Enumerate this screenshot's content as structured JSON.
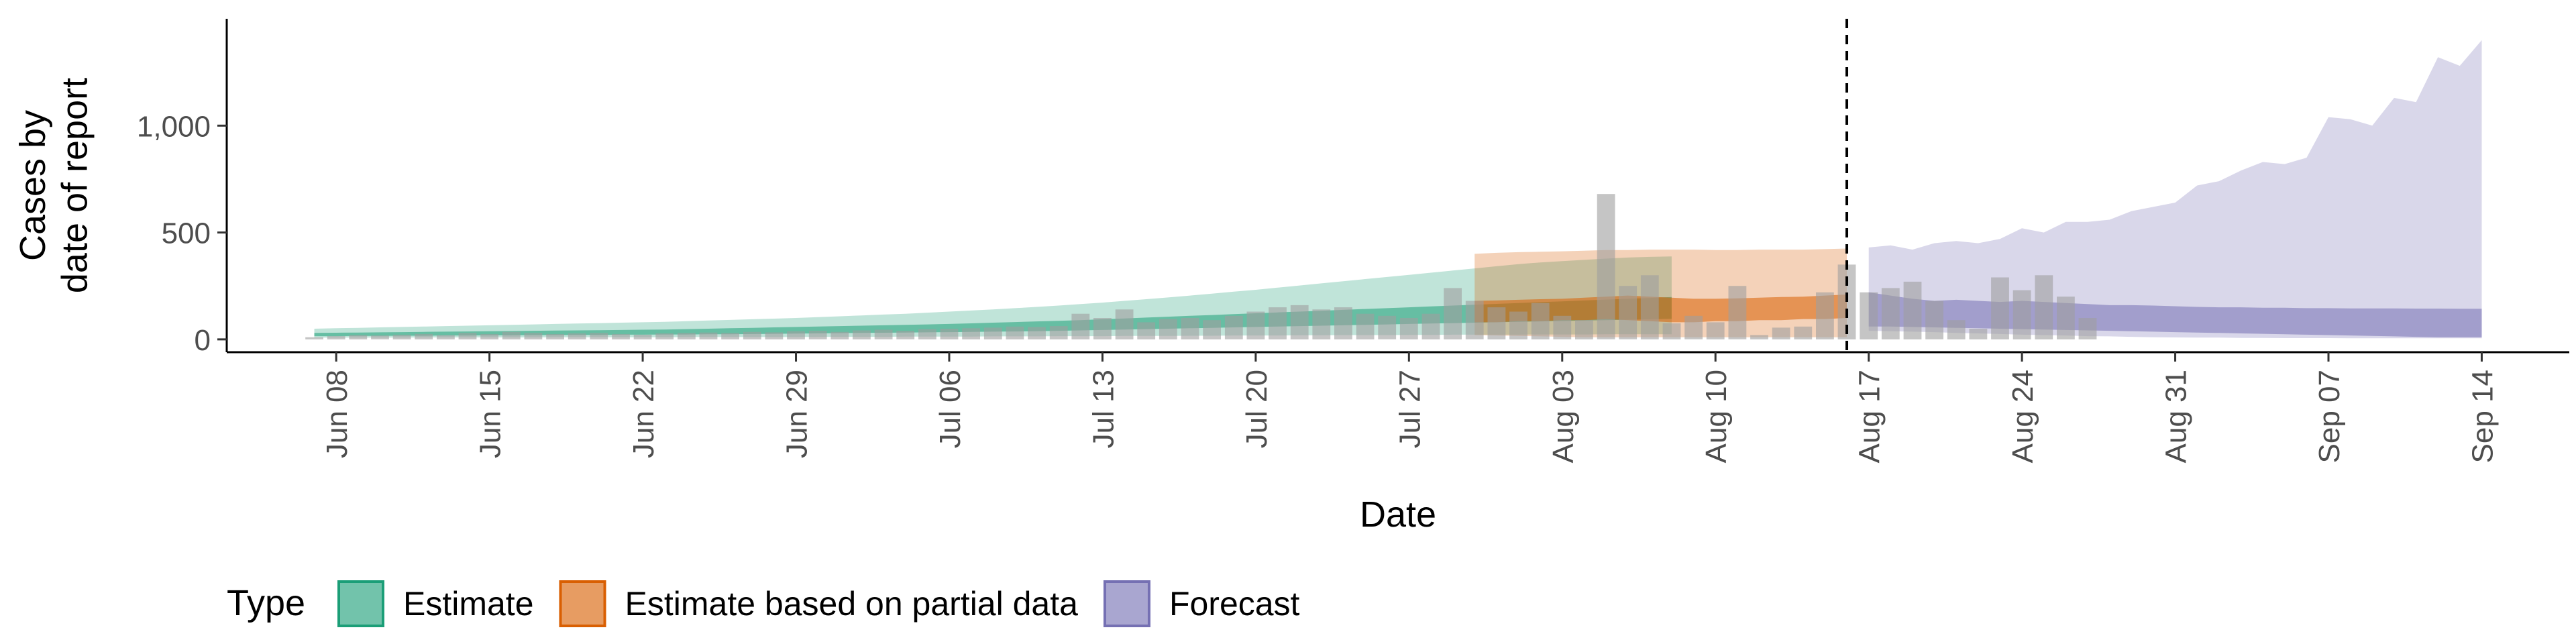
{
  "chart_data": {
    "type": "area",
    "ylabel_lines": [
      "Cases by",
      "date of report"
    ],
    "xlabel": "Date",
    "x_domain": [
      "2020-06-03",
      "2020-09-18"
    ],
    "ylim": [
      -60,
      1500
    ],
    "y_ticks": [
      0,
      500,
      1000
    ],
    "y_tick_labels": [
      "0",
      "500",
      "1,000"
    ],
    "x_ticks": [
      "2020-06-08",
      "2020-06-15",
      "2020-06-22",
      "2020-06-29",
      "2020-07-06",
      "2020-07-13",
      "2020-07-20",
      "2020-07-27",
      "2020-08-03",
      "2020-08-10",
      "2020-08-17",
      "2020-08-24",
      "2020-08-31",
      "2020-09-07",
      "2020-09-14"
    ],
    "x_tick_labels": [
      "Jun 08",
      "Jun 15",
      "Jun 22",
      "Jun 29",
      "Jul 06",
      "Jul 13",
      "Jul 20",
      "Jul 27",
      "Aug 03",
      "Aug 10",
      "Aug 17",
      "Aug 24",
      "Aug 31",
      "Sep 07",
      "Sep 14"
    ],
    "forecast_date": "2020-08-16",
    "legend": {
      "title": "Type",
      "placement": "bottom-left",
      "entries": [
        {
          "label": "Estimate",
          "fill": "#1b9e77",
          "stroke": "#1b9e77"
        },
        {
          "label": "Estimate based on partial data",
          "fill": "#d95f02",
          "stroke": "#d95f02"
        },
        {
          "label": "Forecast",
          "fill": "#7570b3",
          "stroke": "#7570b3"
        }
      ]
    },
    "colors": {
      "estimate": "#1b9e77",
      "partial": "#d95f02",
      "forecast": "#7570b3",
      "bars": "#9e9e9e"
    },
    "reported_cases": {
      "start_date": "2020-06-07",
      "values": [
        10,
        15,
        20,
        18,
        22,
        25,
        20,
        30,
        25,
        35,
        30,
        25,
        28,
        30,
        25,
        22,
        28,
        30,
        32,
        30,
        35,
        33,
        38,
        40,
        35,
        42,
        45,
        40,
        48,
        50,
        52,
        55,
        60,
        58,
        62,
        120,
        100,
        140,
        80,
        95,
        100,
        90,
        110,
        130,
        150,
        160,
        140,
        150,
        120,
        110,
        100,
        120,
        240,
        180,
        150,
        130,
        170,
        110,
        90,
        680,
        250,
        300,
        75,
        110,
        80,
        250,
        20,
        55,
        60,
        220,
        350,
        220,
        240,
        270,
        180,
        90,
        50,
        290,
        230,
        300,
        200,
        100
      ]
    },
    "series": [
      {
        "name": "Estimate",
        "start_date": "2020-06-07",
        "outer_low": [
          8,
          8,
          8,
          8,
          8,
          9,
          9,
          9,
          9,
          9,
          9,
          10,
          10,
          10,
          10,
          10,
          10,
          11,
          11,
          11,
          11,
          11,
          11,
          12,
          12,
          12,
          12,
          13,
          13,
          13,
          13,
          14,
          14,
          14,
          15,
          15,
          15,
          16,
          16,
          16,
          17,
          17,
          18,
          18,
          18,
          19,
          19,
          20,
          20,
          20,
          21,
          21,
          22,
          22,
          22,
          22,
          23,
          23,
          23,
          24,
          24,
          24,
          24
        ],
        "outer_high": [
          50,
          52,
          54,
          56,
          58,
          60,
          62,
          64,
          66,
          68,
          70,
          72,
          74,
          76,
          78,
          80,
          82,
          85,
          88,
          91,
          94,
          97,
          100,
          104,
          108,
          112,
          116,
          120,
          125,
          130,
          135,
          140,
          146,
          152,
          158,
          165,
          172,
          180,
          188,
          196,
          205,
          214,
          223,
          232,
          242,
          252,
          262,
          272,
          282,
          292,
          302,
          312,
          322,
          332,
          342,
          352,
          360,
          366,
          372,
          378,
          383,
          386,
          388
        ],
        "inner_low": [
          15,
          15,
          16,
          16,
          17,
          17,
          18,
          18,
          19,
          19,
          20,
          20,
          21,
          21,
          22,
          22,
          23,
          23,
          24,
          24,
          25,
          26,
          27,
          28,
          29,
          30,
          31,
          32,
          33,
          34,
          35,
          36,
          37,
          38,
          40,
          42,
          44,
          46,
          48,
          50,
          52,
          54,
          56,
          58,
          60,
          62,
          64,
          66,
          68,
          70,
          72,
          74,
          76,
          78,
          80,
          82,
          84,
          86,
          88,
          90,
          92,
          94,
          96
        ],
        "inner_high": [
          30,
          31,
          32,
          33,
          34,
          35,
          36,
          37,
          38,
          39,
          40,
          41,
          42,
          43,
          44,
          45,
          46,
          48,
          50,
          52,
          54,
          56,
          58,
          60,
          62,
          64,
          66,
          68,
          70,
          72,
          75,
          78,
          81,
          84,
          87,
          90,
          94,
          98,
          102,
          106,
          110,
          114,
          118,
          122,
          126,
          130,
          134,
          138,
          142,
          146,
          150,
          154,
          158,
          162,
          166,
          170,
          174,
          178,
          182,
          186,
          190,
          194,
          198
        ]
      },
      {
        "name": "Estimate based on partial data",
        "start_date": "2020-07-30",
        "outer_low": [
          20,
          18,
          16,
          14,
          12,
          10,
          10,
          10,
          10,
          10,
          10,
          10,
          10,
          10,
          10,
          10,
          10,
          10
        ],
        "outer_high": [
          400,
          405,
          408,
          410,
          412,
          415,
          418,
          418,
          420,
          420,
          420,
          418,
          418,
          420,
          420,
          420,
          422,
          425
        ],
        "inner_low": [
          80,
          80,
          85,
          85,
          90,
          90,
          95,
          90,
          85,
          80,
          80,
          85,
          85,
          90,
          90,
          95,
          95,
          100
        ],
        "inner_high": [
          180,
          182,
          185,
          188,
          190,
          195,
          200,
          205,
          200,
          195,
          190,
          190,
          192,
          195,
          198,
          200,
          205,
          210
        ]
      },
      {
        "name": "Forecast",
        "start_date": "2020-08-17",
        "outer_low": [
          40,
          38,
          36,
          34,
          30,
          28,
          25,
          22,
          20,
          18,
          15,
          14,
          12,
          10,
          9,
          8,
          8,
          7,
          7,
          6,
          6,
          6,
          5,
          5,
          5,
          5,
          5,
          5,
          5
        ],
        "outer_high": [
          430,
          440,
          420,
          450,
          460,
          450,
          470,
          520,
          500,
          550,
          550,
          560,
          600,
          620,
          640,
          720,
          740,
          790,
          830,
          820,
          850,
          1040,
          1030,
          1000,
          1130,
          1110,
          1320,
          1280,
          1400
        ],
        "inner_low": [
          60,
          60,
          58,
          56,
          54,
          52,
          50,
          48,
          46,
          44,
          42,
          40,
          38,
          36,
          34,
          32,
          30,
          28,
          26,
          24,
          22,
          20,
          18,
          16,
          14,
          12,
          10,
          10,
          10
        ],
        "inner_high": [
          220,
          205,
          190,
          180,
          185,
          180,
          175,
          180,
          175,
          170,
          165,
          160,
          160,
          158,
          155,
          152,
          150,
          150,
          148,
          148,
          146,
          146,
          145,
          145,
          145,
          144,
          144,
          143,
          143
        ]
      }
    ]
  }
}
